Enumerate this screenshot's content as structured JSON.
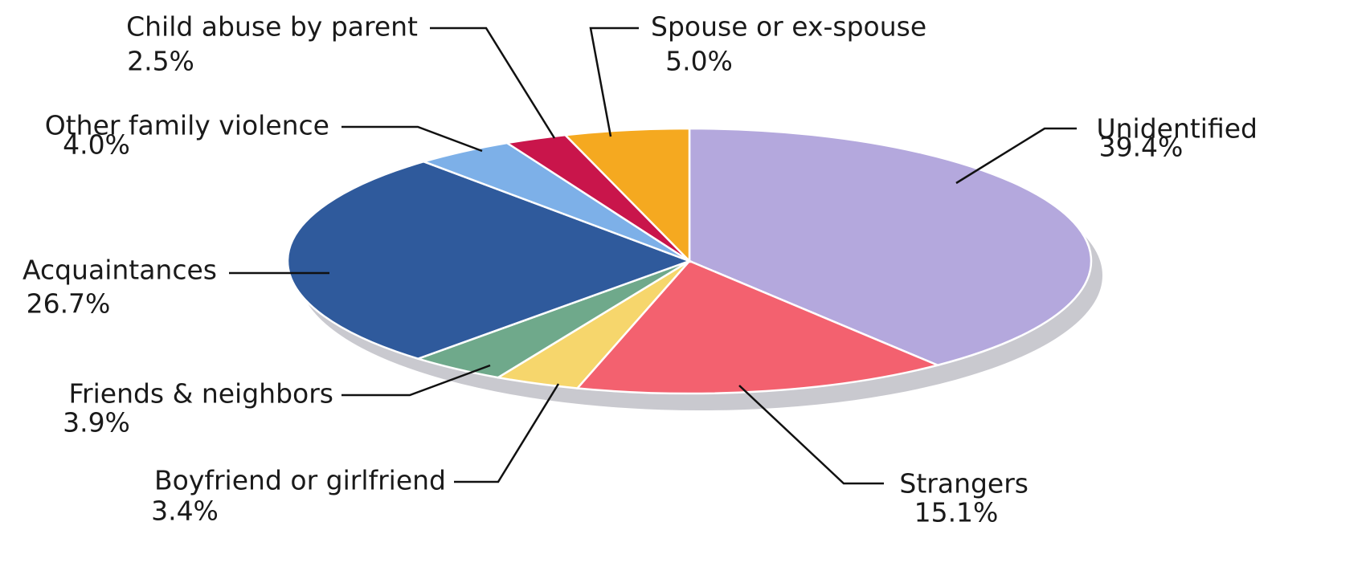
{
  "chart_data": {
    "type": "pie",
    "categories": [
      "Unidentified",
      "Strangers",
      "Boyfriend or girlfriend",
      "Friends & neighbors",
      "Acquaintances",
      "Other family violence",
      "Child abuse by parent",
      "Spouse or ex-spouse"
    ],
    "values": [
      39.4,
      15.1,
      3.4,
      3.9,
      26.7,
      4.0,
      2.5,
      5.0
    ],
    "value_labels": [
      "39.4%",
      "15.1%",
      "3.4%",
      "3.9%",
      "26.7%",
      "4.0%",
      "2.5%",
      "5.0%"
    ],
    "colors": [
      "#b4a8dd",
      "#f3616f",
      "#f6d66c",
      "#6fa98b",
      "#2f5a9c",
      "#7db0e8",
      "#c9154b",
      "#f5a920"
    ]
  }
}
